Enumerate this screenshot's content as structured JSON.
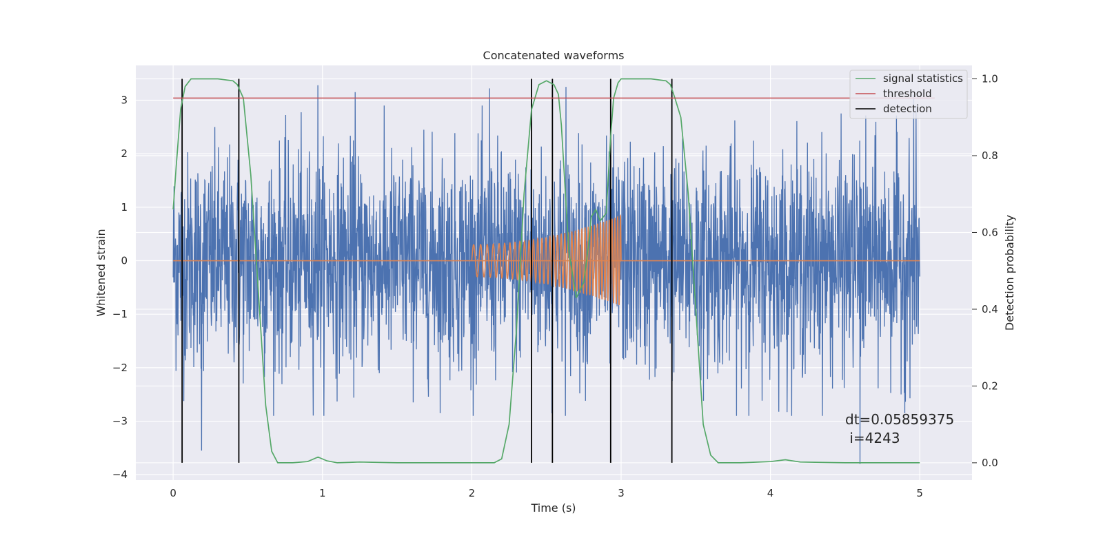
{
  "chart_data": {
    "type": "line",
    "title": "Concatenated waveforms",
    "xlabel": "Time (s)",
    "ylabel": "Whitened strain",
    "y2label": "Detection probability",
    "xlim": [
      -0.25,
      5.35
    ],
    "ylim": [
      -4.1,
      3.65
    ],
    "y2lim": [
      -0.045,
      1.035
    ],
    "x_ticks": [
      0,
      1,
      2,
      3,
      4,
      5
    ],
    "y_ticks": [
      -4,
      -3,
      -2,
      -1,
      0,
      1,
      2,
      3
    ],
    "y2_ticks": [
      0.0,
      0.2,
      0.4,
      0.6,
      0.8,
      1.0
    ],
    "x_tick_labels": [
      "0",
      "1",
      "2",
      "3",
      "4",
      "5"
    ],
    "y_tick_labels": [
      "−4",
      "−3",
      "−2",
      "−1",
      "0",
      "1",
      "2",
      "3"
    ],
    "y2_tick_labels": [
      "0.0",
      "0.2",
      "0.4",
      "0.6",
      "0.8",
      "1.0"
    ],
    "grid": true,
    "legend_position": "top-right",
    "legend": [
      "signal statistics",
      "threshold",
      "detection"
    ],
    "colors": {
      "strain": "#4c72b0",
      "injection": "#dd8452",
      "signal_statistics": "#55a868",
      "threshold": "#c44e52",
      "detection": "#000000",
      "axes_bg": "#eaeaf2",
      "grid": "#ffffff"
    },
    "series": [
      {
        "name": "strain",
        "axis": "left",
        "x_range": [
          0,
          5
        ],
        "typical_amplitude": 1.0,
        "peaks": [
          {
            "x": 0.97,
            "y": 3.28
          },
          {
            "x": 1.22,
            "y": 3.15
          },
          {
            "x": 2.12,
            "y": 3.22
          },
          {
            "x": 2.63,
            "y": 3.25
          },
          {
            "x": 4.96,
            "y": 3.1
          },
          {
            "x": 4.6,
            "y": -3.8
          },
          {
            "x": 0.19,
            "y": -3.55
          },
          {
            "x": 4.9,
            "y": -2.85
          }
        ]
      },
      {
        "name": "injection",
        "axis": "left",
        "x_range": [
          2.0,
          3.0
        ],
        "amplitude_start": 0.3,
        "amplitude_end": 0.85,
        "freq_start_hz": 20,
        "freq_end_hz": 55,
        "baseline_y": 0
      },
      {
        "name": "signal statistics",
        "axis": "right",
        "x": [
          0.0,
          0.02,
          0.05,
          0.08,
          0.12,
          0.2,
          0.3,
          0.4,
          0.43,
          0.47,
          0.52,
          0.57,
          0.62,
          0.66,
          0.7,
          0.8,
          0.9,
          0.97,
          1.03,
          1.1,
          1.25,
          1.5,
          2.0,
          2.15,
          2.2,
          2.25,
          2.3,
          2.35,
          2.4,
          2.45,
          2.5,
          2.55,
          2.58,
          2.6,
          2.65,
          2.7,
          2.75,
          2.78,
          2.8,
          2.83,
          2.86,
          2.9,
          2.93,
          2.95,
          2.98,
          3.0,
          3.1,
          3.2,
          3.3,
          3.33,
          3.36,
          3.4,
          3.45,
          3.5,
          3.55,
          3.6,
          3.65,
          3.7,
          3.8,
          4.0,
          4.1,
          4.2,
          4.5,
          5.0
        ],
        "y": [
          0.66,
          0.77,
          0.92,
          0.98,
          1.0,
          1.0,
          1.0,
          0.995,
          0.985,
          0.95,
          0.75,
          0.45,
          0.15,
          0.03,
          0.0,
          0.0,
          0.003,
          0.015,
          0.005,
          0.0,
          0.002,
          0.0,
          0.0,
          0.0,
          0.01,
          0.1,
          0.35,
          0.7,
          0.92,
          0.985,
          0.995,
          0.985,
          0.96,
          0.88,
          0.55,
          0.43,
          0.47,
          0.56,
          0.64,
          0.66,
          0.63,
          0.65,
          0.85,
          0.95,
          0.99,
          1.0,
          1.0,
          1.0,
          0.995,
          0.985,
          0.95,
          0.9,
          0.7,
          0.4,
          0.1,
          0.02,
          0.0,
          0.0,
          0.0,
          0.003,
          0.008,
          0.002,
          0.0,
          0.0
        ]
      },
      {
        "name": "threshold",
        "axis": "right",
        "x": [
          0,
          5.1
        ],
        "y": [
          0.95,
          0.95
        ]
      }
    ],
    "detections": [
      0.06,
      0.44,
      2.4,
      2.54,
      2.93,
      3.34
    ],
    "annotation": {
      "line1": "dt=0.05859375",
      "line2": " i=4243"
    }
  }
}
